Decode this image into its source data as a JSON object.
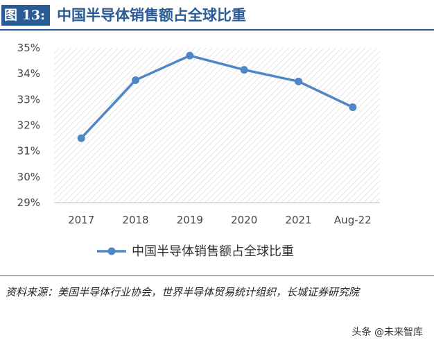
{
  "header": {
    "figure_label": "图 13:",
    "title": "中国半导体销售额占全球比重"
  },
  "source_note": "资料来源：美国半导体行业协会，世界半导体贸易统计组织，长城证券研究院",
  "watermark": "头条 @未来智库",
  "colors": {
    "accent": "#2a5b94",
    "series": "#4e86c6"
  },
  "chart_data": {
    "type": "line",
    "title": "",
    "xlabel": "",
    "ylabel": "",
    "categories": [
      "2017",
      "2018",
      "2019",
      "2020",
      "2021",
      "Aug-22"
    ],
    "y_ticks": [
      "29%",
      "30%",
      "31%",
      "32%",
      "33%",
      "34%",
      "35%"
    ],
    "ylim": [
      29,
      35
    ],
    "grid": "diagonal hatch background",
    "legend_position": "bottom-center",
    "series": [
      {
        "name": "中国半导体销售额占全球比重",
        "values": [
          31.5,
          33.75,
          34.7,
          34.15,
          33.7,
          32.7
        ]
      }
    ]
  }
}
